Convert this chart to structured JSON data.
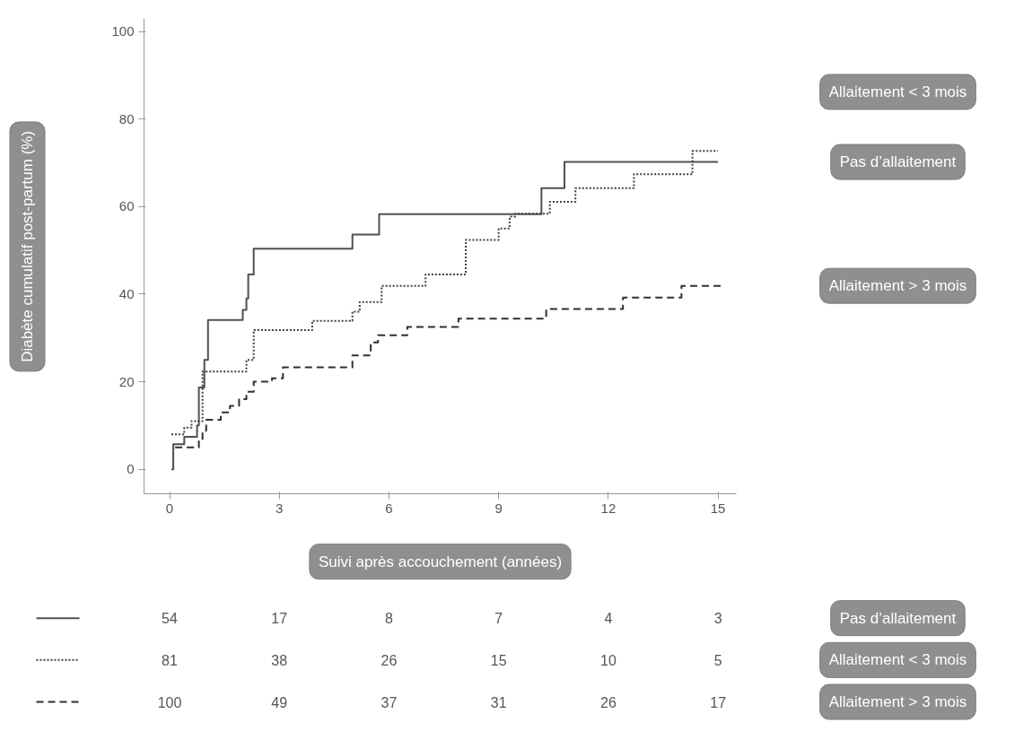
{
  "chart_data": {
    "type": "step",
    "xlabel": "Suivi après accouchement (années)",
    "ylabel": "Diabète cumulatif post-partum (%)",
    "xlim": [
      -0.7,
      15.5
    ],
    "ylim": [
      -5.6,
      103
    ],
    "xticks": [
      0,
      3,
      6,
      9,
      12,
      15
    ],
    "yticks": [
      0,
      20,
      40,
      60,
      80,
      100
    ],
    "grid": false,
    "marker": "none",
    "series": [
      {
        "name": "Pas d’allaitement",
        "color": "#505050",
        "line_style": "solid",
        "x": [
          0.05,
          0.1,
          0.4,
          0.75,
          0.8,
          0.95,
          1.05,
          2.0,
          2.1,
          2.15,
          2.3,
          5.0,
          5.73,
          10.17,
          10.8,
          15.0
        ],
        "values": [
          0,
          5.7,
          7.4,
          10,
          18.7,
          25,
          34.1,
          36.4,
          39,
          44.5,
          50.4,
          53.6,
          58.3,
          64.2,
          70.2,
          70.2
        ]
      },
      {
        "name": "Allaitement < 3 mois",
        "color": "#404040",
        "line_style": "dotted",
        "x": [
          0.05,
          0.4,
          0.6,
          0.9,
          2.1,
          2.3,
          3.9,
          5.0,
          5.2,
          5.8,
          7.0,
          8.1,
          9.0,
          9.3,
          9.45,
          10.4,
          11.1,
          12.7,
          14.3,
          15.0
        ],
        "values": [
          8,
          9.5,
          11,
          22.3,
          25,
          31.8,
          33.9,
          36,
          38.2,
          41.9,
          44.5,
          52.4,
          55,
          57.7,
          58.4,
          61.1,
          64.2,
          67.4,
          72.7,
          72.7
        ]
      },
      {
        "name": "Allaitement > 3 mois",
        "color": "#303030",
        "line_style": "dashed",
        "x": [
          0.15,
          0.8,
          0.9,
          1.0,
          1.4,
          1.65,
          1.9,
          2.1,
          2.3,
          2.8,
          3.1,
          5.0,
          5.5,
          5.7,
          6.5,
          7.9,
          10.3,
          12.4,
          14.0,
          15.1
        ],
        "values": [
          5,
          6.4,
          8.8,
          11.3,
          13,
          14.5,
          16,
          17.7,
          20,
          20.8,
          23.3,
          26,
          29,
          30.6,
          32.5,
          34.4,
          36.6,
          39.2,
          41.9,
          41.9
        ]
      }
    ],
    "annotations": [
      "54",
      "17",
      "8",
      "7",
      "4",
      "3",
      "81",
      "38",
      "26",
      "15",
      "10",
      "5",
      "100",
      "49",
      "37",
      "31",
      "26",
      "17"
    ]
  }
}
